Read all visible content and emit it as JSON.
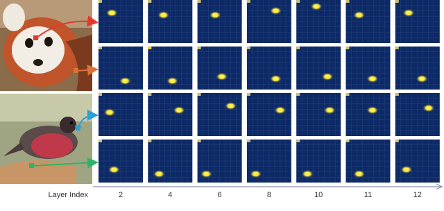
{
  "figure": {
    "axis_label": "Layer Index",
    "layers": [
      "2",
      "4",
      "6",
      "8",
      "10",
      "11",
      "12"
    ]
  }
}
